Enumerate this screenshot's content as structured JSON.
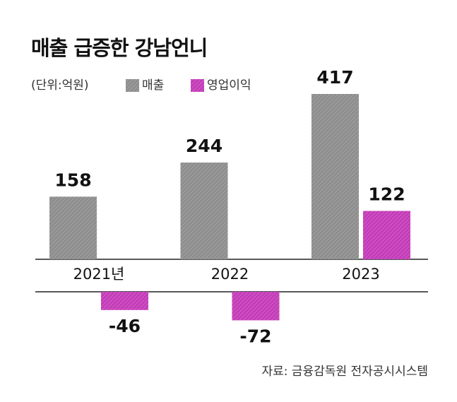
{
  "chart_data": {
    "type": "bar",
    "title": "매출 급증한 강남언니",
    "unit": "(단위:억원)",
    "categories": [
      "2021년",
      "2022",
      "2023"
    ],
    "series": [
      {
        "name": "매출",
        "color": "#8e8e8e",
        "values": [
          158,
          244,
          417
        ]
      },
      {
        "name": "영업이익",
        "color": "#c43cb9",
        "values": [
          -46,
          -72,
          122
        ]
      }
    ],
    "source": "자료: 금융감독원 전자공시시스템"
  }
}
